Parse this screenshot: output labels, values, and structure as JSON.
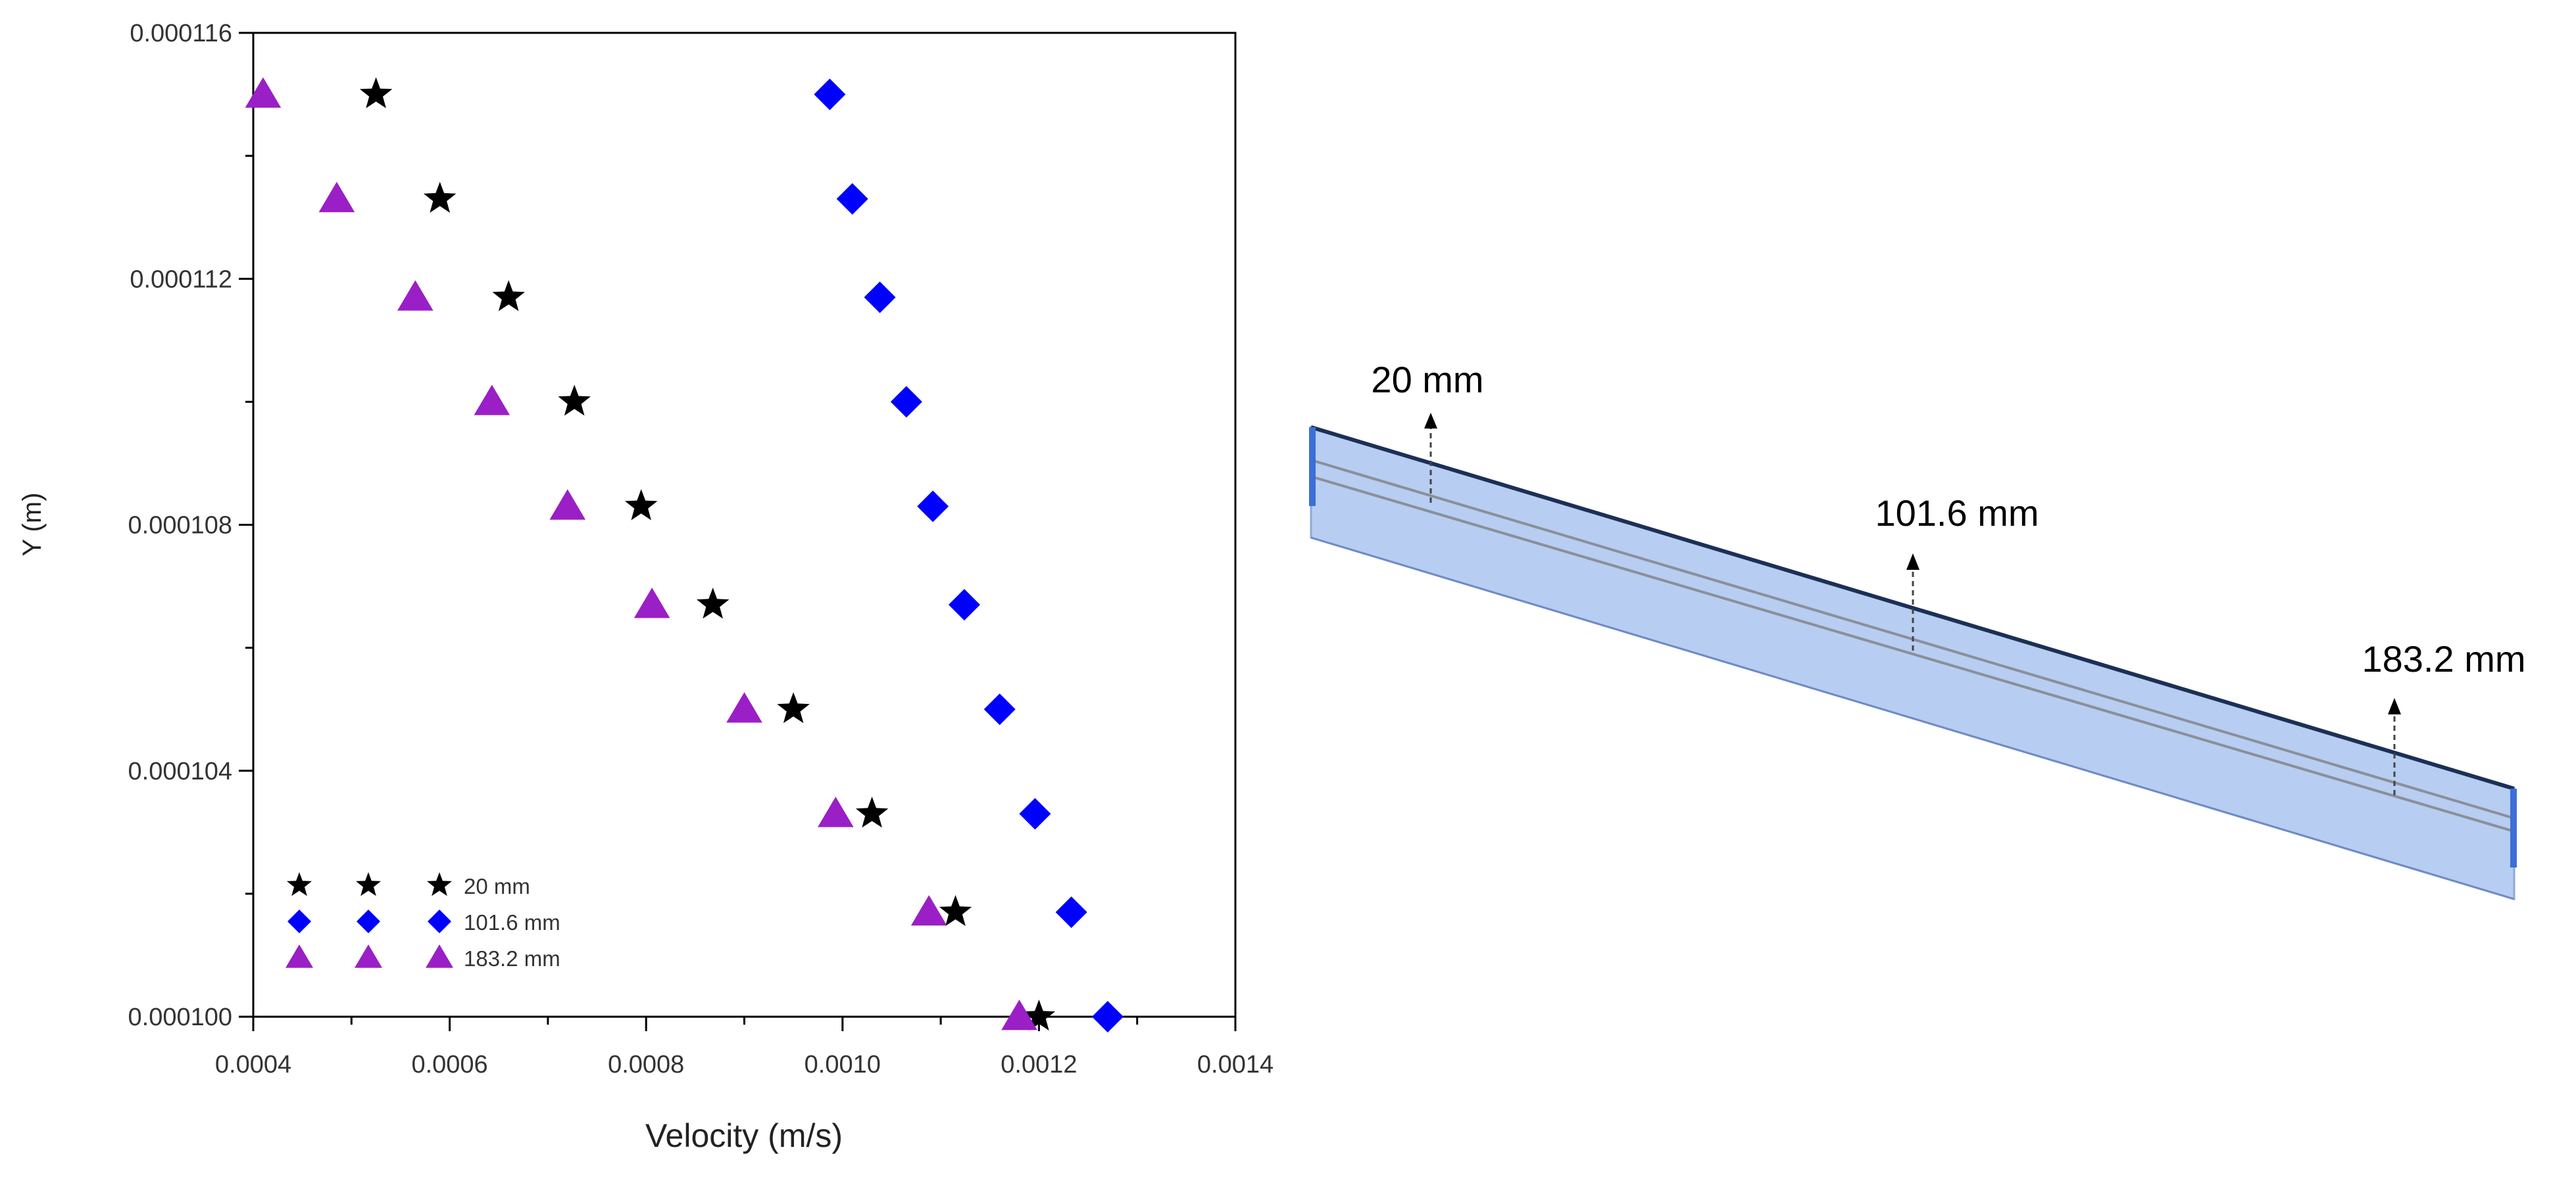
{
  "chart_data": {
    "type": "scatter",
    "xlabel": "Velocity (m/s)",
    "ylabel": "Y (m)",
    "xlim": [
      0.0004,
      0.0014
    ],
    "ylim": [
      0.0001,
      0.000116
    ],
    "x_ticks": [
      "0.0004",
      "0.0006",
      "0.0008",
      "0.0010",
      "0.0012",
      "0.0014"
    ],
    "y_ticks": [
      "0.000100",
      "0.000104",
      "0.000108",
      "0.000112",
      "0.000116"
    ],
    "y_tick_values": [
      0.0001,
      0.000104,
      0.000108,
      0.000112,
      0.000116
    ],
    "x_tick_values": [
      0.0004,
      0.0006,
      0.0008,
      0.001,
      0.0012,
      0.0014
    ],
    "y": [
      0.000115,
      0.0001133,
      0.0001117,
      0.00011,
      0.0001083,
      0.0001067,
      0.000105,
      0.0001033,
      0.0001017,
      0.0001
    ],
    "series": [
      {
        "name": "20 mm",
        "marker": "star",
        "color": "#000000",
        "values": [
          0.000525,
          0.00059,
          0.00066,
          0.000727,
          0.000795,
          0.000868,
          0.00095,
          0.00103,
          0.001115,
          0.0012
        ]
      },
      {
        "name": "101.6 mm",
        "marker": "diamond",
        "color": "#0000ff",
        "values": [
          0.000987,
          0.00101,
          0.001038,
          0.001065,
          0.001092,
          0.001124,
          0.00116,
          0.001196,
          0.001233,
          0.00127
        ]
      },
      {
        "name": "183.2 mm",
        "marker": "triangle",
        "color": "#9a1fc6",
        "values": [
          0.00041,
          0.000485,
          0.000565,
          0.000643,
          0.00072,
          0.000806,
          0.0009,
          0.000993,
          0.001088,
          0.00118
        ]
      }
    ],
    "legend_position": "bottom-left"
  },
  "diagram": {
    "labels": [
      "20 mm",
      "101.6 mm",
      "183.2 mm"
    ]
  }
}
